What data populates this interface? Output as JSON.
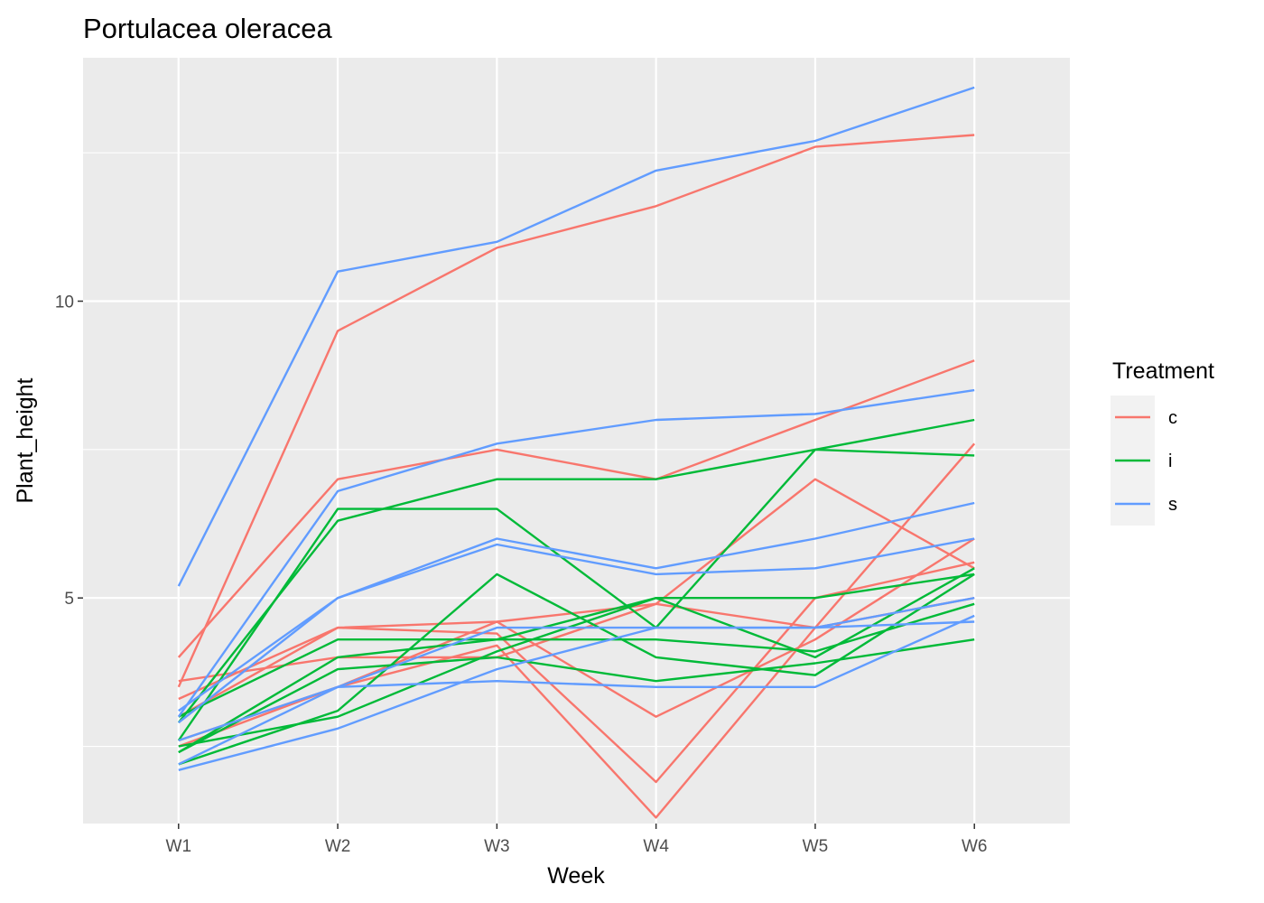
{
  "chart_data": {
    "type": "line",
    "title": "Portulacea oleracea",
    "xlabel": "Week",
    "ylabel": "Plant_height",
    "categories": [
      "W1",
      "W2",
      "W3",
      "W4",
      "W5",
      "W6"
    ],
    "ylim": [
      1.2,
      14.1
    ],
    "yticks": [
      5,
      10
    ],
    "grid": true,
    "legend": {
      "title": "Treatment",
      "position": "right",
      "entries": [
        {
          "label": "c",
          "color": "#F8766D"
        },
        {
          "label": "i",
          "color": "#00BA38"
        },
        {
          "label": "s",
          "color": "#619CFF"
        }
      ]
    },
    "series": [
      {
        "group": "c",
        "values": [
          3.5,
          9.5,
          10.9,
          11.6,
          12.6,
          12.8
        ]
      },
      {
        "group": "c",
        "values": [
          4.0,
          7.0,
          7.5,
          7.0,
          8.0,
          9.0
        ]
      },
      {
        "group": "c",
        "values": [
          3.6,
          4.0,
          4.0,
          4.9,
          7.0,
          5.5
        ]
      },
      {
        "group": "c",
        "values": [
          3.3,
          4.5,
          4.4,
          1.9,
          5.0,
          5.6
        ]
      },
      {
        "group": "c",
        "values": [
          3.0,
          4.5,
          4.6,
          4.9,
          4.5,
          5.0
        ]
      },
      {
        "group": "c",
        "values": [
          2.5,
          3.5,
          4.6,
          3.0,
          4.3,
          6.0
        ]
      },
      {
        "group": "c",
        "values": [
          2.6,
          3.5,
          4.2,
          1.3,
          4.5,
          7.6
        ]
      },
      {
        "group": "i",
        "values": [
          2.9,
          6.3,
          7.0,
          7.0,
          7.5,
          8.0
        ]
      },
      {
        "group": "i",
        "values": [
          2.6,
          6.5,
          6.5,
          4.5,
          7.5,
          7.4
        ]
      },
      {
        "group": "i",
        "values": [
          3.0,
          4.3,
          4.3,
          4.3,
          4.1,
          4.9
        ]
      },
      {
        "group": "i",
        "values": [
          2.4,
          4.0,
          4.3,
          5.0,
          5.0,
          5.4
        ]
      },
      {
        "group": "i",
        "values": [
          2.4,
          3.8,
          4.0,
          3.6,
          3.9,
          4.3
        ]
      },
      {
        "group": "i",
        "values": [
          2.2,
          3.1,
          5.4,
          4.0,
          3.7,
          5.4
        ]
      },
      {
        "group": "i",
        "values": [
          2.5,
          3.0,
          4.1,
          5.0,
          4.0,
          5.5
        ]
      },
      {
        "group": "s",
        "values": [
          5.2,
          10.5,
          11.0,
          12.2,
          12.7,
          13.6
        ]
      },
      {
        "group": "s",
        "values": [
          3.0,
          6.8,
          7.6,
          8.0,
          8.1,
          8.5
        ]
      },
      {
        "group": "s",
        "values": [
          3.1,
          5.0,
          6.0,
          5.5,
          6.0,
          6.6
        ]
      },
      {
        "group": "s",
        "values": [
          2.9,
          5.0,
          5.9,
          5.4,
          5.5,
          6.0
        ]
      },
      {
        "group": "s",
        "values": [
          2.6,
          3.5,
          4.5,
          4.5,
          4.5,
          5.0
        ]
      },
      {
        "group": "s",
        "values": [
          2.2,
          3.5,
          3.6,
          3.5,
          3.5,
          4.7
        ]
      },
      {
        "group": "s",
        "values": [
          2.1,
          2.8,
          3.8,
          4.5,
          4.5,
          4.6
        ]
      }
    ]
  }
}
